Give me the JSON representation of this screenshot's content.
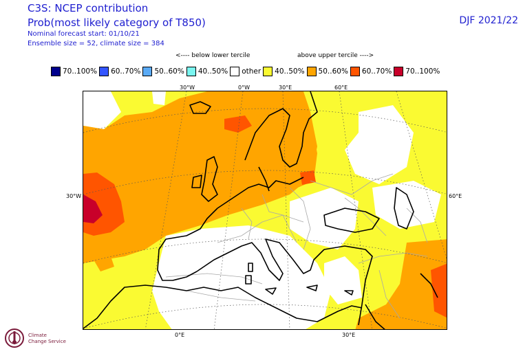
{
  "header": {
    "title_line1": "C3S: NCEP contribution",
    "title_line2": "Prob(most likely category of T850)",
    "meta_line1": "Nominal forecast start: 01/10/21",
    "meta_line2": "Ensemble size = 52, climate size = 384",
    "season": "DJF 2021/22"
  },
  "legend": {
    "below_label": "<---- below lower tercile",
    "above_label": "above upper tercile ---->",
    "items": [
      {
        "label": "70..100%",
        "color": "#00008c"
      },
      {
        "label": "60..70%",
        "color": "#3355ff"
      },
      {
        "label": "50..60%",
        "color": "#5aaaf5"
      },
      {
        "label": "40..50%",
        "color": "#7af5f0"
      },
      {
        "label": "other",
        "color": "#ffffff"
      },
      {
        "label": "40..50%",
        "color": "#fafa32"
      },
      {
        "label": "50..60%",
        "color": "#ffa500"
      },
      {
        "label": "60..70%",
        "color": "#ff5500"
      },
      {
        "label": "70..100%",
        "color": "#c8002a"
      }
    ]
  },
  "axes": {
    "top_ticks": [
      "30°W",
      "0°W",
      "30°E",
      "60°E"
    ],
    "left_tick": "30°W",
    "right_tick": "60°E",
    "bottom_ticks": [
      "0°E",
      "30°E"
    ]
  },
  "logo": {
    "line1": "Climate",
    "line2": "Change Service"
  }
}
